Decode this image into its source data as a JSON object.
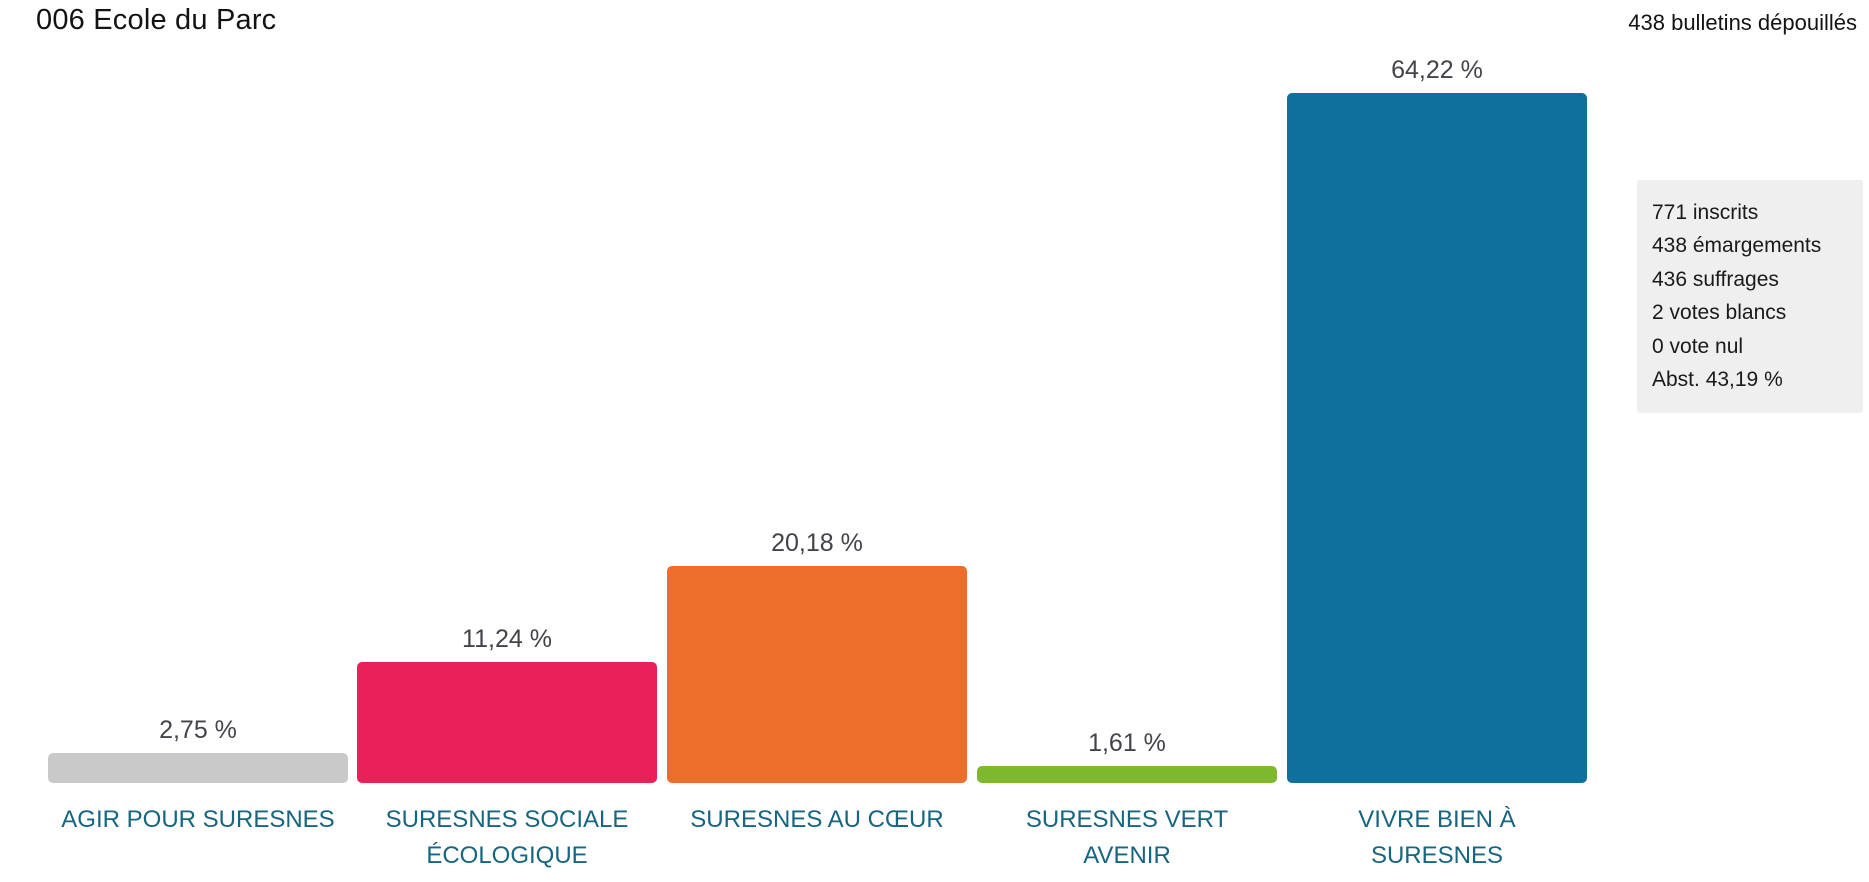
{
  "page": {
    "title": "006 Ecole du Parc",
    "bulletins_label": "438 bulletins dépouillés"
  },
  "summary_panel": {
    "lines": [
      "771 inscrits",
      "438 émargements",
      "436 suffrages",
      "2 votes blancs",
      "0 vote nul",
      "Abst. 43,19 %"
    ]
  },
  "theme": {
    "value_label_color": "#43434b",
    "category_label_color": "#17657f",
    "panel_bg": "#efefef"
  },
  "chart_data": {
    "type": "bar",
    "title": "006 Ecole du Parc",
    "subtitle": "438 bulletins dépouillés",
    "categories": [
      "AGIR POUR SURESNES",
      "SURESNES SOCIALE\nÉCOLOGIQUE",
      "SURESNES AU CŒUR",
      "SURESNES VERT\nAVENIR",
      "VIVRE BIEN À\nSURESNES"
    ],
    "values": [
      2.75,
      11.24,
      20.18,
      1.61,
      64.22
    ],
    "value_labels": [
      "2,75 %",
      "11,24 %",
      "20,18 %",
      "1,61 %",
      "64,22 %"
    ],
    "colors": [
      "#c9c9c9",
      "#e92158",
      "#ed6d2a",
      "#7eb82d",
      "#0f6f9d"
    ],
    "xlabel": "",
    "ylabel": "",
    "ylim": [
      0,
      65
    ],
    "grid": false,
    "legend": false,
    "value_labels_position": "above-bar"
  }
}
